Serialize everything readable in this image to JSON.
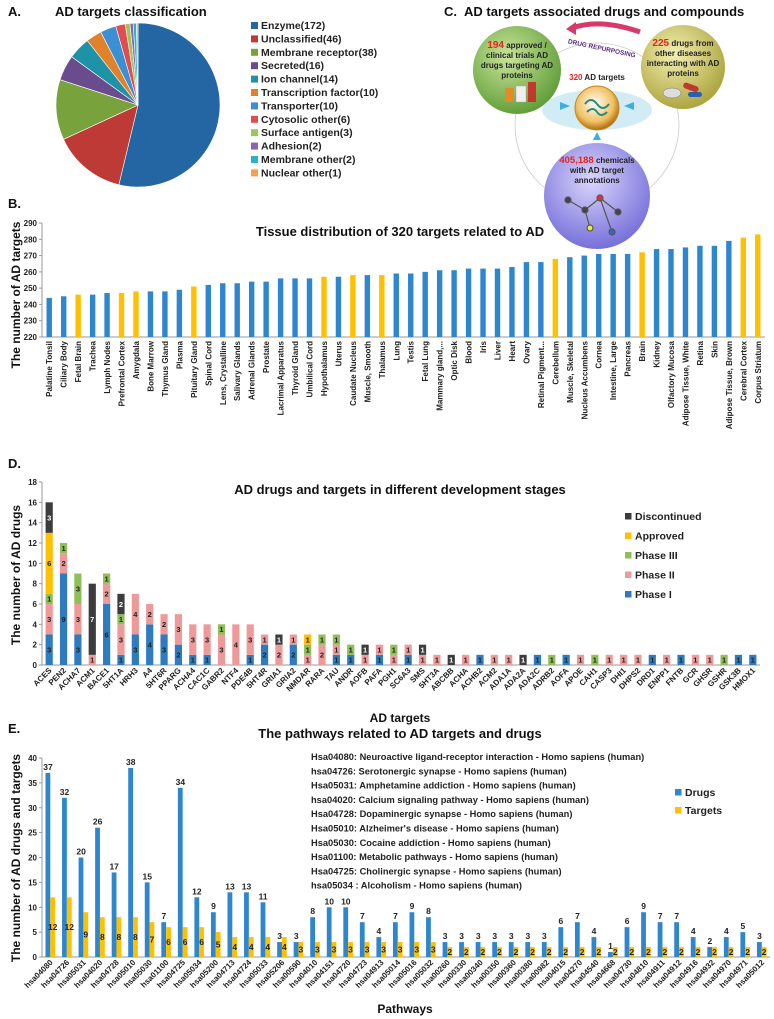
{
  "panel_labels": {
    "a": "A.",
    "b": "B.",
    "c": "C.",
    "d": "D.",
    "e": "E."
  },
  "colors": {
    "blue": "#2e86cf",
    "yellow": "#ffc000",
    "phase1": "#2e7cbf",
    "phase2": "#ee9a9a",
    "phase3": "#8fbf56",
    "approved": "#ffc000",
    "discontinued": "#3c3c3c"
  },
  "diagram": {
    "title": "AD targets  associated drugs and compounds",
    "arrow_label": "DRUG REPURPOSING",
    "left": {
      "count": "194",
      "text_lines": [
        "approved /",
        "clinical trials AD",
        "drugs targeting AD",
        "proteins"
      ]
    },
    "right": {
      "count": "225",
      "text_lines": [
        "drugs from",
        "other diseases",
        "interacting with AD",
        "proteins"
      ]
    },
    "center": {
      "count": "320",
      "text": "AD targets"
    },
    "bottom": {
      "count": "405,188",
      "text_lines": [
        "chemicals",
        "with AD target",
        "annotations"
      ]
    }
  },
  "chart_data": [
    {
      "id": "a",
      "type": "pie",
      "title": "AD targets classification",
      "legend_position": "right",
      "slices": [
        {
          "label": "Enzyme(172)",
          "value": 172,
          "color": "#2366a3"
        },
        {
          "label": "Unclassified(46)",
          "value": 46,
          "color": "#bd3a36"
        },
        {
          "label": "Membrane receptor(38)",
          "value": 38,
          "color": "#78a23c"
        },
        {
          "label": "Secreted(16)",
          "value": 16,
          "color": "#6a4c8e"
        },
        {
          "label": "Ion channel(14)",
          "value": 14,
          "color": "#1e93a8"
        },
        {
          "label": "Transcription factor(10)",
          "value": 10,
          "color": "#e0812c"
        },
        {
          "label": "Transporter(10)",
          "value": 10,
          "color": "#3b8fd3"
        },
        {
          "label": "Cytosolic other(6)",
          "value": 6,
          "color": "#df4e4e"
        },
        {
          "label": "Surface antigen(3)",
          "value": 3,
          "color": "#9cc65a"
        },
        {
          "label": "Adhesion(2)",
          "value": 2,
          "color": "#8a62b8"
        },
        {
          "label": "Membrane other(2)",
          "value": 2,
          "color": "#2ab3c8"
        },
        {
          "label": "Nuclear other(1)",
          "value": 1,
          "color": "#f6a04e"
        }
      ]
    },
    {
      "id": "b",
      "type": "bar",
      "title": "Tissue distribution of 320 targets related to AD",
      "ylabel": "The number of AD targets",
      "xlabel": "",
      "ylim": [
        220,
        290
      ],
      "yticks": [
        220,
        230,
        240,
        250,
        260,
        270,
        280,
        290
      ],
      "brain_color": "#ffc000",
      "other_color": "#2e86cf",
      "bars": [
        {
          "label": "Palatine Tonsil",
          "value": 244,
          "brain": false
        },
        {
          "label": "Ciliary Body",
          "value": 245,
          "brain": false
        },
        {
          "label": "Fetal Brain",
          "value": 246,
          "brain": true
        },
        {
          "label": "Trachea",
          "value": 246,
          "brain": false
        },
        {
          "label": "Lymph Nodes",
          "value": 247,
          "brain": false
        },
        {
          "label": "Prefrontal Cortex",
          "value": 247,
          "brain": true
        },
        {
          "label": "Amygdala",
          "value": 248,
          "brain": true
        },
        {
          "label": "Bone Marrow",
          "value": 248,
          "brain": false
        },
        {
          "label": "Thymus Gland",
          "value": 248,
          "brain": false
        },
        {
          "label": "Plasma",
          "value": 249,
          "brain": false
        },
        {
          "label": "Pituitary Gland",
          "value": 251,
          "brain": true
        },
        {
          "label": "Spinal Cord",
          "value": 252,
          "brain": false
        },
        {
          "label": "Lens, Crystalline",
          "value": 253,
          "brain": false
        },
        {
          "label": "Salivary Glands",
          "value": 253,
          "brain": false
        },
        {
          "label": "Adrenal Glands",
          "value": 254,
          "brain": false
        },
        {
          "label": "Prostate",
          "value": 254,
          "brain": false
        },
        {
          "label": "Lacrimal Apparatus",
          "value": 256,
          "brain": false
        },
        {
          "label": "Thyroid Gland",
          "value": 256,
          "brain": false
        },
        {
          "label": "Umbilical Cord",
          "value": 256,
          "brain": false
        },
        {
          "label": "Hypothalamus",
          "value": 257,
          "brain": true
        },
        {
          "label": "Uterus",
          "value": 257,
          "brain": false
        },
        {
          "label": "Caudate Nucleus",
          "value": 258,
          "brain": true
        },
        {
          "label": "Muscle, Smooth",
          "value": 258,
          "brain": false
        },
        {
          "label": "Thalamus",
          "value": 258,
          "brain": true
        },
        {
          "label": "Lung",
          "value": 259,
          "brain": false
        },
        {
          "label": "Testis",
          "value": 259,
          "brain": false
        },
        {
          "label": "Fetal Lung",
          "value": 260,
          "brain": false
        },
        {
          "label": "Mammary gland,...",
          "value": 261,
          "brain": false
        },
        {
          "label": "Optic Disk",
          "value": 261,
          "brain": false
        },
        {
          "label": "Blood",
          "value": 262,
          "brain": false
        },
        {
          "label": "Iris",
          "value": 262,
          "brain": false
        },
        {
          "label": "Liver",
          "value": 262,
          "brain": false
        },
        {
          "label": "Heart",
          "value": 263,
          "brain": false
        },
        {
          "label": "Ovary",
          "value": 266,
          "brain": false
        },
        {
          "label": "Retinal Pigment...",
          "value": 266,
          "brain": false
        },
        {
          "label": "Cerebellum",
          "value": 268,
          "brain": true
        },
        {
          "label": "Muscle, Skeletal",
          "value": 269,
          "brain": false
        },
        {
          "label": "Nucleus Accumbens",
          "value": 270,
          "brain": false
        },
        {
          "label": "Cornea",
          "value": 271,
          "brain": false
        },
        {
          "label": "Intestine, Large",
          "value": 271,
          "brain": false
        },
        {
          "label": "Pancreas",
          "value": 271,
          "brain": false
        },
        {
          "label": "Brain",
          "value": 272,
          "brain": true
        },
        {
          "label": "Kidney",
          "value": 274,
          "brain": false
        },
        {
          "label": "Olfactory Mucosa",
          "value": 274,
          "brain": false
        },
        {
          "label": "Adipose Tissue, White",
          "value": 275,
          "brain": false
        },
        {
          "label": "Retina",
          "value": 276,
          "brain": false
        },
        {
          "label": "Skin",
          "value": 276,
          "brain": false
        },
        {
          "label": "Adipose Tissue, Brown",
          "value": 279,
          "brain": false
        },
        {
          "label": "Cerebral Cortex",
          "value": 281,
          "brain": true
        },
        {
          "label": "Corpus Striatum",
          "value": 283,
          "brain": true
        }
      ]
    },
    {
      "id": "d",
      "type": "stacked-bar",
      "title": "AD drugs and targets in different development stages",
      "ylabel": "The number of AD drugs",
      "xlabel": "AD targets",
      "ylim": [
        0,
        18
      ],
      "yticks": [
        0,
        2,
        4,
        6,
        8,
        10,
        12,
        14,
        16,
        18
      ],
      "legend_position": "right",
      "series": [
        {
          "name": "Phase I",
          "key": "phase1"
        },
        {
          "name": "Phase II",
          "key": "phase2"
        },
        {
          "name": "Phase III",
          "key": "phase3"
        },
        {
          "name": "Approved",
          "key": "approved"
        },
        {
          "name": "Discontinued",
          "key": "discontinued"
        }
      ],
      "legend_order": [
        "Discontinued",
        "Approved",
        "Phase III",
        "Phase II",
        "Phase I"
      ],
      "categories": [
        "ACES",
        "PEN2",
        "ACHA7",
        "ACM1",
        "BACE1",
        "5HT1A",
        "HRH3",
        "A4",
        "5HT6R",
        "PPARG",
        "ACHA4",
        "CAC1C",
        "GABR2",
        "NTF4",
        "PDE4B",
        "5HT4R",
        "GRIA1",
        "GRIA2",
        "NMDAR",
        "RARA",
        "TAU",
        "ANDR",
        "AOFB",
        "PAFA",
        "PGH1",
        "SC6A3",
        "SMS",
        "5HT3A",
        "ABCBB",
        "ACHA",
        "ACHB2",
        "ACM2",
        "ADA1A",
        "ADA2A",
        "ADA2C",
        "ADRB2",
        "AOFA",
        "APOE",
        "CAH1",
        "CASP3",
        "DHI1",
        "DHPS2",
        "DRD1",
        "ENPP1",
        "FNTB",
        "GCR",
        "GHSR",
        "GSHR",
        "GSK3B",
        "HMOX1"
      ],
      "values": [
        [
          3,
          3,
          1,
          6,
          3
        ],
        [
          9,
          2,
          1,
          0,
          0
        ],
        [
          3,
          3,
          3,
          0,
          0
        ],
        [
          0,
          1,
          0,
          0,
          7
        ],
        [
          6,
          2,
          1,
          0,
          0
        ],
        [
          1,
          3,
          1,
          0,
          2
        ],
        [
          3,
          4,
          0,
          0,
          0
        ],
        [
          4,
          2,
          0,
          0,
          0
        ],
        [
          3,
          2,
          0,
          0,
          0
        ],
        [
          2,
          3,
          0,
          0,
          0
        ],
        [
          1,
          3,
          0,
          0,
          0
        ],
        [
          1,
          3,
          0,
          0,
          0
        ],
        [
          0,
          3,
          1,
          0,
          0
        ],
        [
          0,
          4,
          0,
          0,
          0
        ],
        [
          1,
          3,
          0,
          0,
          0
        ],
        [
          2,
          1,
          0,
          0,
          0
        ],
        [
          0,
          2,
          0,
          0,
          1
        ],
        [
          2,
          1,
          0,
          0,
          0
        ],
        [
          0,
          1,
          1,
          1,
          0
        ],
        [
          0,
          2,
          1,
          0,
          0
        ],
        [
          1,
          1,
          1,
          0,
          0
        ],
        [
          1,
          0,
          1,
          0,
          0
        ],
        [
          0,
          1,
          0,
          0,
          1
        ],
        [
          1,
          1,
          0,
          0,
          0
        ],
        [
          0,
          1,
          1,
          0,
          0
        ],
        [
          1,
          1,
          0,
          0,
          0
        ],
        [
          0,
          1,
          0,
          0,
          1
        ],
        [
          0,
          1,
          0,
          0,
          0
        ],
        [
          0,
          0,
          0,
          0,
          1
        ],
        [
          0,
          1,
          0,
          0,
          0
        ],
        [
          1,
          0,
          0,
          0,
          0
        ],
        [
          0,
          1,
          0,
          0,
          0
        ],
        [
          0,
          1,
          0,
          0,
          0
        ],
        [
          0,
          0,
          0,
          0,
          1
        ],
        [
          1,
          0,
          0,
          0,
          0
        ],
        [
          0,
          0,
          1,
          0,
          0
        ],
        [
          1,
          0,
          0,
          0,
          0
        ],
        [
          0,
          1,
          0,
          0,
          0
        ],
        [
          0,
          0,
          1,
          0,
          0
        ],
        [
          0,
          1,
          0,
          0,
          0
        ],
        [
          0,
          1,
          0,
          0,
          0
        ],
        [
          0,
          1,
          0,
          0,
          0
        ],
        [
          1,
          0,
          0,
          0,
          0
        ],
        [
          0,
          1,
          0,
          0,
          0
        ],
        [
          1,
          0,
          0,
          0,
          0
        ],
        [
          0,
          1,
          0,
          0,
          0
        ],
        [
          0,
          1,
          0,
          0,
          0
        ],
        [
          0,
          0,
          1,
          0,
          0
        ],
        [
          1,
          0,
          0,
          0,
          0
        ],
        [
          1,
          0,
          0,
          0,
          0
        ]
      ]
    },
    {
      "id": "e",
      "type": "bar",
      "title": "The pathways related to AD targets and drugs",
      "ylabel": "The number of AD drugs and targets",
      "xlabel": "Pathways",
      "ylim": [
        0,
        40
      ],
      "yticks": [
        0,
        5,
        10,
        15,
        20,
        25,
        30,
        35,
        40
      ],
      "legend_position": "right",
      "categories": [
        "hsa04080",
        "hsa04726",
        "hsa05031",
        "hsa04020",
        "hsa04728",
        "hsa05010",
        "hsa05030",
        "hsa01100",
        "hsa04725",
        "hsa05034",
        "hsa05200",
        "hsa04713",
        "hsa04724",
        "hsa05033",
        "hsa05206",
        "hsa00590",
        "hsa04010",
        "hsa04151",
        "hsa04720",
        "hsa04723",
        "hsa04913",
        "hsa05014",
        "hsa05016",
        "hsa05032",
        "hsa00260",
        "hsa00330",
        "hsa00340",
        "hsa00350",
        "hsa00360",
        "hsa00380",
        "hsa00982",
        "hsa04015",
        "hsa04270",
        "hsa04540",
        "hsa04668",
        "hsa04730",
        "hsa04810",
        "hsa04911",
        "hsa04912",
        "hsa04916",
        "hsa04932",
        "hsa04970",
        "hsa04971",
        "hsa05012"
      ],
      "series": [
        {
          "name": "Drugs",
          "color": "#2e86cf",
          "values": [
            37,
            32,
            20,
            26,
            17,
            38,
            15,
            7,
            34,
            12,
            9,
            13,
            13,
            11,
            3,
            3,
            8,
            10,
            10,
            7,
            4,
            7,
            9,
            8,
            3,
            3,
            3,
            3,
            3,
            3,
            3,
            6,
            7,
            4,
            1,
            6,
            9,
            7,
            7,
            4,
            2,
            4,
            5,
            3
          ]
        },
        {
          "name": "Targets",
          "color": "#ffc000",
          "values": [
            12,
            12,
            9,
            8,
            8,
            8,
            7,
            6,
            6,
            6,
            5,
            4,
            4,
            4,
            4,
            3,
            3,
            3,
            3,
            3,
            3,
            3,
            3,
            3,
            2,
            2,
            2,
            2,
            2,
            2,
            2,
            2,
            2,
            2,
            2,
            2,
            2,
            2,
            2,
            2,
            2,
            2,
            2,
            2
          ]
        }
      ],
      "annotations": [
        "Hsa04080:  Neuroactive ligand-receptor interaction - Homo sapiens (human)",
        "hsa04726:  Serotonergic synapse - Homo sapiens (human)",
        "Hsa05031:  Amphetamine addiction - Homo sapiens (human)",
        "hsa04020:  Calcium signaling pathway - Homo sapiens (human)",
        "Hsa04728:  Dopaminergic synapse - Homo sapiens (human)",
        "Hsa05010:  Alzheimer's disease - Homo sapiens (human)",
        "Hsa05030:  Cocaine addiction - Homo sapiens (human)",
        "Hsa01100:  Metabolic pathways - Homo sapiens (human)",
        "Hsa04725:  Cholinergic synapse - Homo sapiens (human)",
        "hsa05034 : Alcoholism - Homo sapiens (human)"
      ]
    }
  ]
}
